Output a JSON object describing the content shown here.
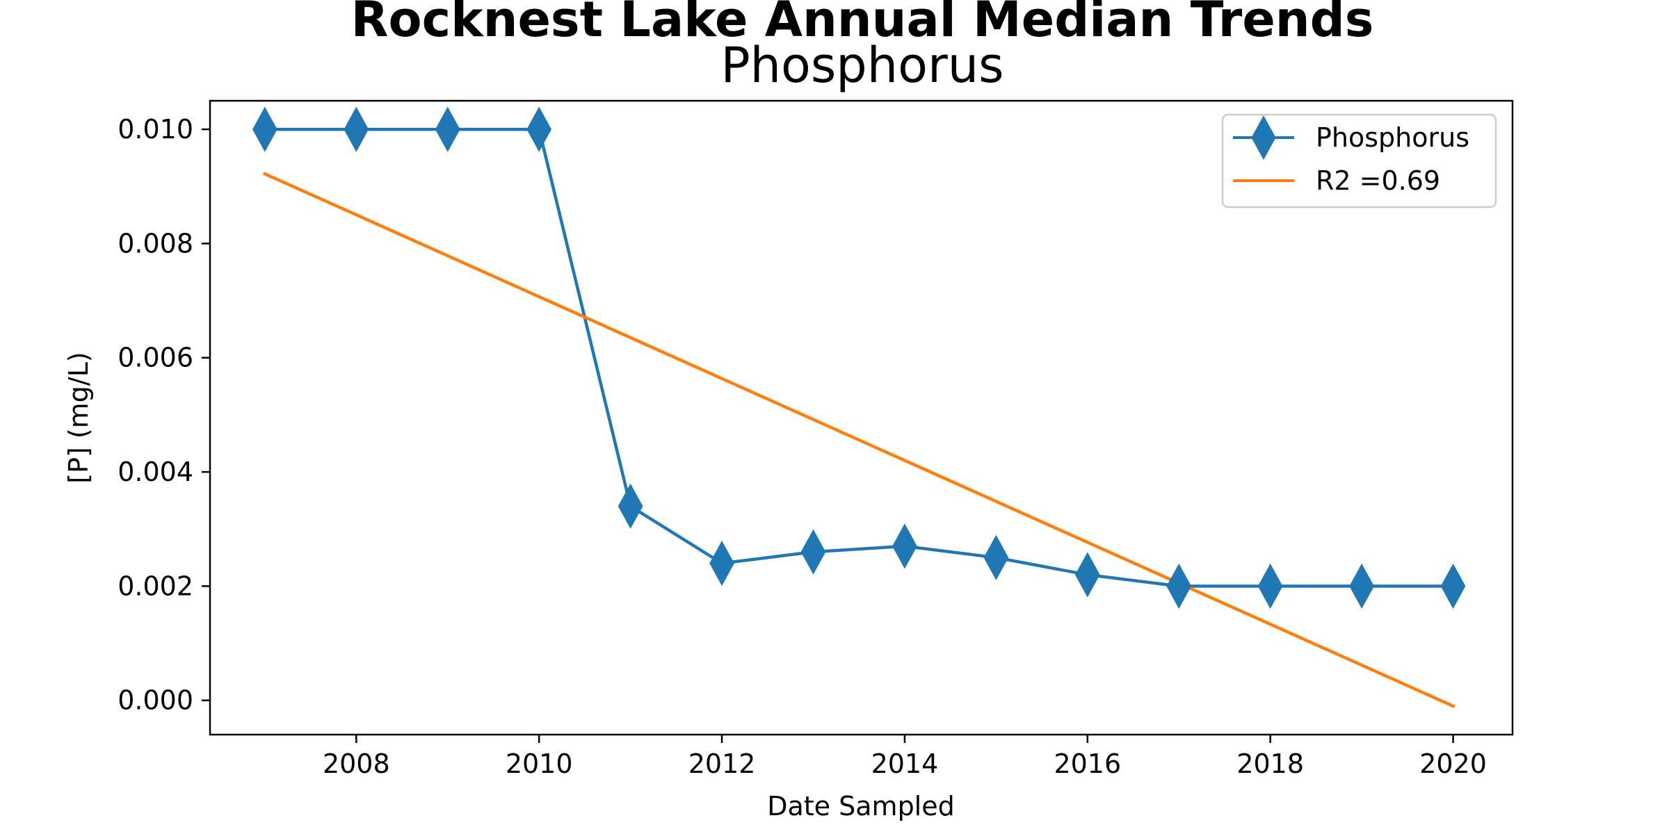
{
  "chart_data": {
    "type": "line",
    "title": "Rocknest Lake Annual Median Trends",
    "subtitle": "Phosphorus",
    "xlabel": "Date Sampled",
    "ylabel": "[P] (mg/L)",
    "xlim": [
      2006.4,
      2020.65
    ],
    "ylim": [
      -0.0006,
      0.0105
    ],
    "xticks": [
      2008,
      2010,
      2012,
      2014,
      2016,
      2018,
      2020
    ],
    "yticks": [
      0.0,
      0.002,
      0.004,
      0.006,
      0.008,
      0.01
    ],
    "ytick_labels": [
      "0.000",
      "0.002",
      "0.004",
      "0.006",
      "0.008",
      "0.010"
    ],
    "grid": false,
    "legend_position": "top-right",
    "series": [
      {
        "name": "Phosphorus",
        "color": "#1f77b4",
        "marker": "thin-diamond",
        "x": [
          2007,
          2008,
          2009,
          2010,
          2011,
          2012,
          2013,
          2014,
          2015,
          2016,
          2017,
          2018,
          2019,
          2020
        ],
        "y": [
          0.01,
          0.01,
          0.01,
          0.01,
          0.0034,
          0.0024,
          0.0026,
          0.0027,
          0.0025,
          0.0022,
          0.002,
          0.002,
          0.002,
          0.002
        ]
      },
      {
        "name": "R2 =0.69",
        "color": "#ff7f0e",
        "marker": "none",
        "x": [
          2007,
          2020
        ],
        "y": [
          0.00922,
          -0.0001
        ]
      }
    ]
  }
}
